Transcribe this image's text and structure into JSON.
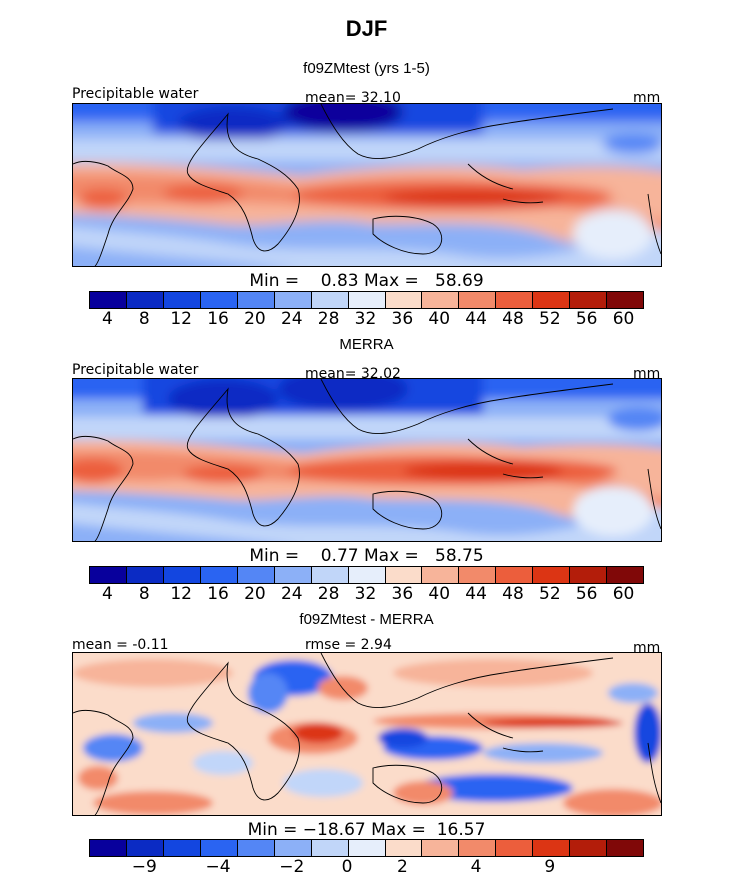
{
  "title": "DJF",
  "colors": {
    "raw_palette": [
      "#08009c",
      "#0b2bc4",
      "#1346e0",
      "#2a64f2",
      "#5486f5",
      "#8cb0f7",
      "#c1d6f9",
      "#e6eefb",
      "#fbdcca",
      "#f7b49a",
      "#f28a6a",
      "#ec5e3c",
      "#dc3514",
      "#b31d0a",
      "#800808"
    ],
    "diff_palette": [
      "#08009c",
      "#0b2bc4",
      "#1346e0",
      "#2a64f2",
      "#5486f5",
      "#8cb0f7",
      "#c1d6f9",
      "#e6eefb",
      "#fbdcca",
      "#f7b49a",
      "#f28a6a",
      "#ec5e3c",
      "#dc3514",
      "#b31d0a",
      "#800808"
    ]
  },
  "chart_data": [
    {
      "type": "heatmap",
      "subtitle": "f09ZMtest (yrs 1-5)",
      "variable_label": "Precipitable water",
      "mean_text": "mean=  32.10",
      "units": "mm",
      "minmax_text": "Min =    0.83 Max =   58.69",
      "min": 0.83,
      "max": 58.69,
      "mean": 32.1,
      "colorbar_ticks": [
        "4",
        "8",
        "12",
        "16",
        "20",
        "24",
        "28",
        "32",
        "36",
        "40",
        "44",
        "48",
        "52",
        "56",
        "60"
      ],
      "levels": [
        4,
        8,
        12,
        16,
        20,
        24,
        28,
        32,
        36,
        40,
        44,
        48,
        52,
        56,
        60
      ]
    },
    {
      "type": "heatmap",
      "subtitle": "MERRA",
      "variable_label": "Precipitable water",
      "mean_text": "mean=  32.02",
      "units": "mm",
      "minmax_text": "Min =    0.77 Max =   58.75",
      "min": 0.77,
      "max": 58.75,
      "mean": 32.02,
      "colorbar_ticks": [
        "4",
        "8",
        "12",
        "16",
        "20",
        "24",
        "28",
        "32",
        "36",
        "40",
        "44",
        "48",
        "52",
        "56",
        "60"
      ],
      "levels": [
        4,
        8,
        12,
        16,
        20,
        24,
        28,
        32,
        36,
        40,
        44,
        48,
        52,
        56,
        60
      ]
    },
    {
      "type": "heatmap",
      "subtitle": "f09ZMtest - MERRA",
      "mean_text": "mean =  -0.11",
      "rmse_text": "rmse =    2.94",
      "units": "mm",
      "minmax_text": "Min = −18.67 Max =  16.57",
      "min": -18.67,
      "max": 16.57,
      "mean": -0.11,
      "rmse": 2.94,
      "colorbar_ticks": [
        "−9",
        "−4",
        "−2",
        "0",
        "2",
        "4",
        "9"
      ],
      "levels": [
        -9,
        -6,
        -4,
        -3,
        -2,
        -1,
        0,
        1,
        2,
        3,
        4,
        6,
        9
      ]
    }
  ]
}
